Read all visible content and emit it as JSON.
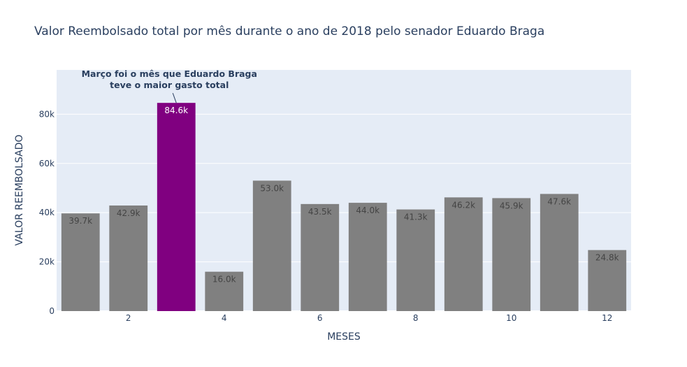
{
  "chart_data": {
    "type": "bar",
    "title": "Valor Reembolsado total por mês durante o ano de 2018 pelo senador Eduardo Braga",
    "xlabel": "MESES",
    "ylabel": "VALOR REEMBOLSADO",
    "categories": [
      1,
      2,
      3,
      4,
      5,
      6,
      7,
      8,
      9,
      10,
      11,
      12
    ],
    "values": [
      39700,
      42900,
      84600,
      16000,
      53000,
      43500,
      44000,
      41300,
      46200,
      45900,
      47600,
      24800
    ],
    "value_labels": [
      "39.7k",
      "42.9k",
      "84.6k",
      "16.0k",
      "53.0k",
      "43.5k",
      "44.0k",
      "41.3k",
      "46.2k",
      "45.9k",
      "47.6k",
      "24.8k"
    ],
    "x_ticks": [
      2,
      4,
      6,
      8,
      10,
      12
    ],
    "x_tick_labels": [
      "2",
      "4",
      "6",
      "8",
      "10",
      "12"
    ],
    "y_ticks": [
      0,
      20000,
      40000,
      60000,
      80000
    ],
    "y_tick_labels": [
      "0",
      "20k",
      "40k",
      "60k",
      "80k"
    ],
    "ylim": [
      0,
      98000
    ],
    "xlim": [
      0.5,
      12.5
    ],
    "grid": true,
    "bar_color": "#808080",
    "highlight_color": "#800080",
    "highlight_index": 2,
    "plot_bg": "#e5ecf6",
    "annotation": {
      "lines": [
        "Março foi o mês que Eduardo Braga",
        "teve o maior gasto total"
      ],
      "target_index": 2
    }
  }
}
